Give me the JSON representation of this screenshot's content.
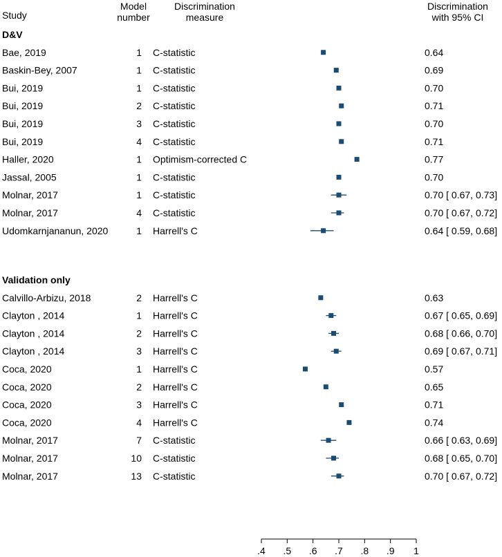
{
  "chart_data": {
    "type": "forest",
    "headers": {
      "study": "Study",
      "model_line1": "Model",
      "model_line2": "number",
      "measure_line1": "Discrimination",
      "measure_line2": "measure",
      "result_line1": "Discrimination",
      "result_line2": "with 95% CI"
    },
    "groups": [
      {
        "name": "D&V",
        "rows": [
          {
            "study": "Bae, 2019",
            "model": "1",
            "measure": "C-statistic",
            "estimate": 0.64,
            "ci": null,
            "label": "0.64"
          },
          {
            "study": "Baskin-Bey, 2007",
            "model": "1",
            "measure": "C-statistic",
            "estimate": 0.69,
            "ci": null,
            "label": "0.69"
          },
          {
            "study": "Bui, 2019",
            "model": "1",
            "measure": "C-statistic",
            "estimate": 0.7,
            "ci": null,
            "label": "0.70"
          },
          {
            "study": "Bui, 2019",
            "model": "2",
            "measure": "C-statistic",
            "estimate": 0.71,
            "ci": null,
            "label": "0.71"
          },
          {
            "study": "Bui, 2019",
            "model": "3",
            "measure": "C-statistic",
            "estimate": 0.7,
            "ci": null,
            "label": "0.70"
          },
          {
            "study": "Bui, 2019",
            "model": "4",
            "measure": "C-statistic",
            "estimate": 0.71,
            "ci": null,
            "label": "0.71"
          },
          {
            "study": "Haller, 2020",
            "model": "1",
            "measure": "Optimism-corrected C",
            "estimate": 0.77,
            "ci": null,
            "label": "0.77"
          },
          {
            "study": "Jassal, 2005",
            "model": "1",
            "measure": "C-statistic",
            "estimate": 0.7,
            "ci": null,
            "label": "0.70"
          },
          {
            "study": "Molnar, 2017",
            "model": "1",
            "measure": "C-statistic",
            "estimate": 0.7,
            "ci": [
              0.67,
              0.73
            ],
            "label": "0.70 [ 0.67,  0.73]"
          },
          {
            "study": "Molnar, 2017",
            "model": "4",
            "measure": "C-statistic",
            "estimate": 0.7,
            "ci": [
              0.67,
              0.72
            ],
            "label": "0.70 [ 0.67,  0.72]"
          },
          {
            "study": "Udomkarnjananun, 2020",
            "model": "1",
            "measure": "Harrell's C",
            "estimate": 0.64,
            "ci": [
              0.59,
              0.68
            ],
            "label": "0.64 [ 0.59,  0.68]"
          }
        ]
      },
      {
        "name": "Validation only",
        "rows": [
          {
            "study": "Calvillo-Arbizu, 2018",
            "model": "2",
            "measure": "Harrell's C",
            "estimate": 0.63,
            "ci": null,
            "label": "0.63"
          },
          {
            "study": "Clayton , 2014",
            "model": "1",
            "measure": "Harrell's C",
            "estimate": 0.67,
            "ci": [
              0.65,
              0.69
            ],
            "label": "0.67 [ 0.65,  0.69]"
          },
          {
            "study": "Clayton , 2014",
            "model": "2",
            "measure": "Harrell's C",
            "estimate": 0.68,
            "ci": [
              0.66,
              0.7
            ],
            "label": "0.68 [ 0.66,  0.70]"
          },
          {
            "study": "Clayton , 2014",
            "model": "3",
            "measure": "Harrell's C",
            "estimate": 0.69,
            "ci": [
              0.67,
              0.71
            ],
            "label": "0.69 [ 0.67,  0.71]"
          },
          {
            "study": "Coca, 2020",
            "model": "1",
            "measure": "Harrell's C",
            "estimate": 0.57,
            "ci": null,
            "label": "0.57"
          },
          {
            "study": "Coca, 2020",
            "model": "2",
            "measure": "Harrell's C",
            "estimate": 0.65,
            "ci": null,
            "label": "0.65"
          },
          {
            "study": "Coca, 2020",
            "model": "3",
            "measure": "Harrell's C",
            "estimate": 0.71,
            "ci": null,
            "label": "0.71"
          },
          {
            "study": "Coca, 2020",
            "model": "4",
            "measure": "Harrell's C",
            "estimate": 0.74,
            "ci": null,
            "label": "0.74"
          },
          {
            "study": "Molnar, 2017",
            "model": "7",
            "measure": "C-statistic",
            "estimate": 0.66,
            "ci": [
              0.63,
              0.69
            ],
            "label": "0.66 [ 0.63,  0.69]"
          },
          {
            "study": "Molnar, 2017",
            "model": "10",
            "measure": "C-statistic",
            "estimate": 0.68,
            "ci": [
              0.65,
              0.7
            ],
            "label": "0.68 [ 0.65,  0.70]"
          },
          {
            "study": "Molnar, 2017",
            "model": "13",
            "measure": "C-statistic",
            "estimate": 0.7,
            "ci": [
              0.67,
              0.72
            ],
            "label": "0.70 [ 0.67,  0.72]"
          }
        ]
      }
    ],
    "x_axis": {
      "min": 0.4,
      "max": 1.0,
      "ticks": [
        0.4,
        0.5,
        0.6,
        0.7,
        0.8,
        0.9,
        1.0
      ],
      "tick_labels": [
        ".4",
        ".5",
        ".6",
        ".7",
        ".8",
        ".9",
        "1"
      ]
    },
    "marker_color": "#1a4b73",
    "grid": false
  }
}
